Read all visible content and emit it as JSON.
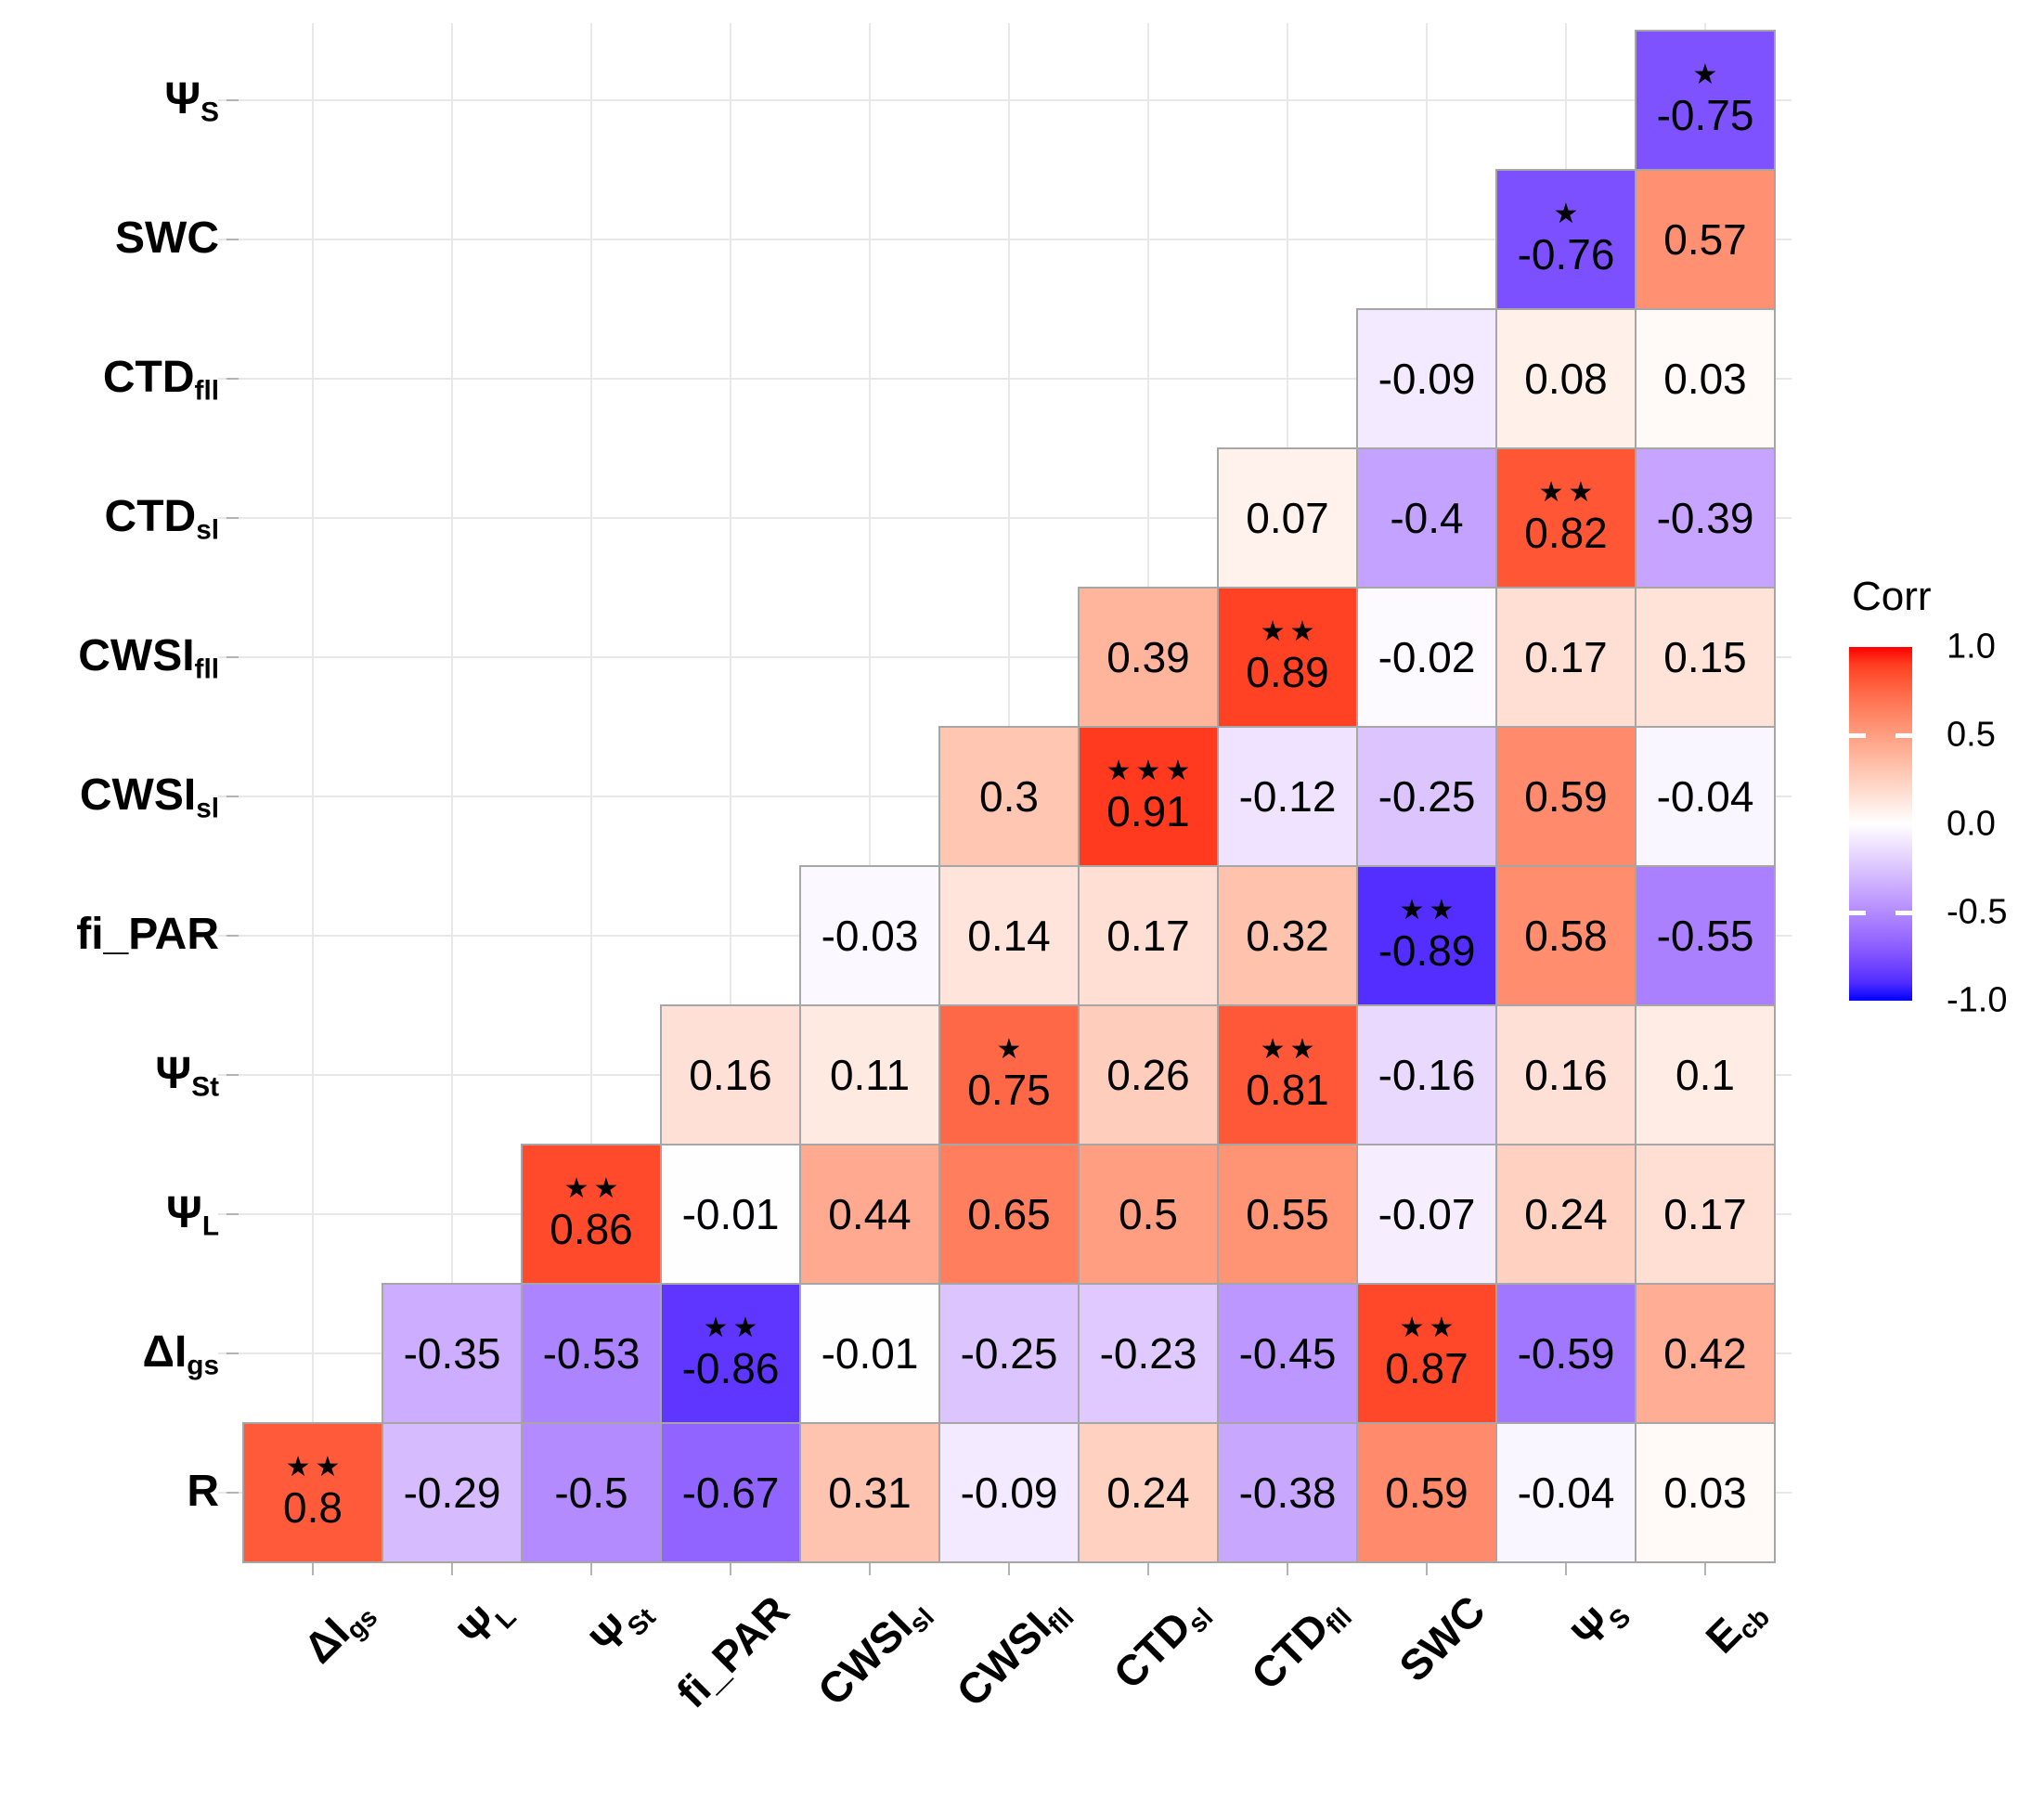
{
  "chart_data": {
    "type": "heatmap",
    "subtype": "correlation-matrix-lower-triangle",
    "title": "",
    "legend": {
      "title": "Corr",
      "position": "right",
      "ticks": [
        "1.0",
        "0.5",
        "0.0",
        "-0.5",
        "-1.0"
      ],
      "limits": [
        -1,
        1
      ]
    },
    "colors": {
      "high": "#FF0000",
      "mid": "#FFFFFF",
      "low": "#0000FF",
      "tile_border": "#A6A6A6",
      "gridline": "#E8E8E8",
      "tick": "#B3B3B3",
      "text": "#000000"
    },
    "significance_note": "stars shown above coefficient: * ** ***",
    "variables": {
      "dIgs": [
        [
          "ΔI",
          0
        ],
        [
          "gs",
          1
        ]
      ],
      "psiL": [
        [
          "Ψ",
          0
        ],
        [
          "L",
          1
        ]
      ],
      "psiSt": [
        [
          "Ψ",
          0
        ],
        [
          "St",
          1
        ]
      ],
      "fiPAR": [
        [
          "fi_PAR",
          0
        ]
      ],
      "CWSIsl": [
        [
          "CWSI",
          0
        ],
        [
          "sl",
          1
        ]
      ],
      "CWSIfll": [
        [
          "CWSI",
          0
        ],
        [
          "fll",
          1
        ]
      ],
      "CTDsl": [
        [
          "CTD",
          0
        ],
        [
          "sl",
          1
        ]
      ],
      "CTDfll": [
        [
          "CTD",
          0
        ],
        [
          "fll",
          1
        ]
      ],
      "SWC": [
        [
          "SWC",
          0
        ]
      ],
      "psiS": [
        [
          "Ψ",
          0
        ],
        [
          "S",
          1
        ]
      ],
      "Ecb": [
        [
          "E",
          0
        ],
        [
          "cb",
          1
        ]
      ],
      "R": [
        [
          "R",
          0
        ]
      ]
    },
    "x_order": [
      "dIgs",
      "psiL",
      "psiSt",
      "fiPAR",
      "CWSIsl",
      "CWSIfll",
      "CTDsl",
      "CTDfll",
      "SWC",
      "psiS",
      "Ecb"
    ],
    "y_order_top_to_bottom": [
      "psiS",
      "SWC",
      "CTDfll",
      "CTDsl",
      "CWSIfll",
      "CWSIsl",
      "fiPAR",
      "psiSt",
      "psiL",
      "dIgs",
      "R"
    ],
    "cells": [
      {
        "row": "psiS",
        "col": "Ecb",
        "v": "-0.75",
        "sig": "*"
      },
      {
        "row": "SWC",
        "col": "psiS",
        "v": "-0.76",
        "sig": "*"
      },
      {
        "row": "SWC",
        "col": "Ecb",
        "v": "0.57",
        "sig": ""
      },
      {
        "row": "CTDfll",
        "col": "SWC",
        "v": "-0.09",
        "sig": ""
      },
      {
        "row": "CTDfll",
        "col": "psiS",
        "v": "0.08",
        "sig": ""
      },
      {
        "row": "CTDfll",
        "col": "Ecb",
        "v": "0.03",
        "sig": ""
      },
      {
        "row": "CTDsl",
        "col": "CTDfll",
        "v": "0.07",
        "sig": ""
      },
      {
        "row": "CTDsl",
        "col": "SWC",
        "v": "-0.4",
        "sig": ""
      },
      {
        "row": "CTDsl",
        "col": "psiS",
        "v": "0.82",
        "sig": "**"
      },
      {
        "row": "CTDsl",
        "col": "Ecb",
        "v": "-0.39",
        "sig": ""
      },
      {
        "row": "CWSIfll",
        "col": "CTDsl",
        "v": "0.39",
        "sig": ""
      },
      {
        "row": "CWSIfll",
        "col": "CTDfll",
        "v": "0.89",
        "sig": "**"
      },
      {
        "row": "CWSIfll",
        "col": "SWC",
        "v": "-0.02",
        "sig": ""
      },
      {
        "row": "CWSIfll",
        "col": "psiS",
        "v": "0.17",
        "sig": ""
      },
      {
        "row": "CWSIfll",
        "col": "Ecb",
        "v": "0.15",
        "sig": ""
      },
      {
        "row": "CWSIsl",
        "col": "CWSIfll",
        "v": "0.3",
        "sig": ""
      },
      {
        "row": "CWSIsl",
        "col": "CTDsl",
        "v": "0.91",
        "sig": "***"
      },
      {
        "row": "CWSIsl",
        "col": "CTDfll",
        "v": "-0.12",
        "sig": ""
      },
      {
        "row": "CWSIsl",
        "col": "SWC",
        "v": "-0.25",
        "sig": ""
      },
      {
        "row": "CWSIsl",
        "col": "psiS",
        "v": "0.59",
        "sig": ""
      },
      {
        "row": "CWSIsl",
        "col": "Ecb",
        "v": "-0.04",
        "sig": ""
      },
      {
        "row": "fiPAR",
        "col": "CWSIsl",
        "v": "-0.03",
        "sig": ""
      },
      {
        "row": "fiPAR",
        "col": "CWSIfll",
        "v": "0.14",
        "sig": ""
      },
      {
        "row": "fiPAR",
        "col": "CTDsl",
        "v": "0.17",
        "sig": ""
      },
      {
        "row": "fiPAR",
        "col": "CTDfll",
        "v": "0.32",
        "sig": ""
      },
      {
        "row": "fiPAR",
        "col": "SWC",
        "v": "-0.89",
        "sig": "**"
      },
      {
        "row": "fiPAR",
        "col": "psiS",
        "v": "0.58",
        "sig": ""
      },
      {
        "row": "fiPAR",
        "col": "Ecb",
        "v": "-0.55",
        "sig": ""
      },
      {
        "row": "psiSt",
        "col": "fiPAR",
        "v": "0.16",
        "sig": ""
      },
      {
        "row": "psiSt",
        "col": "CWSIsl",
        "v": "0.11",
        "sig": ""
      },
      {
        "row": "psiSt",
        "col": "CWSIfll",
        "v": "0.75",
        "sig": "*"
      },
      {
        "row": "psiSt",
        "col": "CTDsl",
        "v": "0.26",
        "sig": ""
      },
      {
        "row": "psiSt",
        "col": "CTDfll",
        "v": "0.81",
        "sig": "**"
      },
      {
        "row": "psiSt",
        "col": "SWC",
        "v": "-0.16",
        "sig": ""
      },
      {
        "row": "psiSt",
        "col": "psiS",
        "v": "0.16",
        "sig": ""
      },
      {
        "row": "psiSt",
        "col": "Ecb",
        "v": "0.1",
        "sig": ""
      },
      {
        "row": "psiL",
        "col": "psiSt",
        "v": "0.86",
        "sig": "**"
      },
      {
        "row": "psiL",
        "col": "fiPAR",
        "v": "-0.01",
        "sig": ""
      },
      {
        "row": "psiL",
        "col": "CWSIsl",
        "v": "0.44",
        "sig": ""
      },
      {
        "row": "psiL",
        "col": "CWSIfll",
        "v": "0.65",
        "sig": ""
      },
      {
        "row": "psiL",
        "col": "CTDsl",
        "v": "0.5",
        "sig": ""
      },
      {
        "row": "psiL",
        "col": "CTDfll",
        "v": "0.55",
        "sig": ""
      },
      {
        "row": "psiL",
        "col": "SWC",
        "v": "-0.07",
        "sig": ""
      },
      {
        "row": "psiL",
        "col": "psiS",
        "v": "0.24",
        "sig": ""
      },
      {
        "row": "psiL",
        "col": "Ecb",
        "v": "0.17",
        "sig": ""
      },
      {
        "row": "dIgs",
        "col": "psiL",
        "v": "-0.35",
        "sig": ""
      },
      {
        "row": "dIgs",
        "col": "psiSt",
        "v": "-0.53",
        "sig": ""
      },
      {
        "row": "dIgs",
        "col": "fiPAR",
        "v": "-0.86",
        "sig": "**"
      },
      {
        "row": "dIgs",
        "col": "CWSIsl",
        "v": "-0.01",
        "sig": ""
      },
      {
        "row": "dIgs",
        "col": "CWSIfll",
        "v": "-0.25",
        "sig": ""
      },
      {
        "row": "dIgs",
        "col": "CTDsl",
        "v": "-0.23",
        "sig": ""
      },
      {
        "row": "dIgs",
        "col": "CTDfll",
        "v": "-0.45",
        "sig": ""
      },
      {
        "row": "dIgs",
        "col": "SWC",
        "v": "0.87",
        "sig": "**"
      },
      {
        "row": "dIgs",
        "col": "psiS",
        "v": "-0.59",
        "sig": ""
      },
      {
        "row": "dIgs",
        "col": "Ecb",
        "v": "0.42",
        "sig": ""
      },
      {
        "row": "R",
        "col": "dIgs",
        "v": "0.8",
        "sig": "**"
      },
      {
        "row": "R",
        "col": "psiL",
        "v": "-0.29",
        "sig": ""
      },
      {
        "row": "R",
        "col": "psiSt",
        "v": "-0.5",
        "sig": ""
      },
      {
        "row": "R",
        "col": "fiPAR",
        "v": "-0.67",
        "sig": ""
      },
      {
        "row": "R",
        "col": "CWSIsl",
        "v": "0.31",
        "sig": ""
      },
      {
        "row": "R",
        "col": "CWSIfll",
        "v": "-0.09",
        "sig": ""
      },
      {
        "row": "R",
        "col": "CTDsl",
        "v": "0.24",
        "sig": ""
      },
      {
        "row": "R",
        "col": "CTDfll",
        "v": "-0.38",
        "sig": ""
      },
      {
        "row": "R",
        "col": "SWC",
        "v": "0.59",
        "sig": ""
      },
      {
        "row": "R",
        "col": "psiS",
        "v": "-0.04",
        "sig": ""
      },
      {
        "row": "R",
        "col": "Ecb",
        "v": "0.03",
        "sig": ""
      }
    ]
  }
}
